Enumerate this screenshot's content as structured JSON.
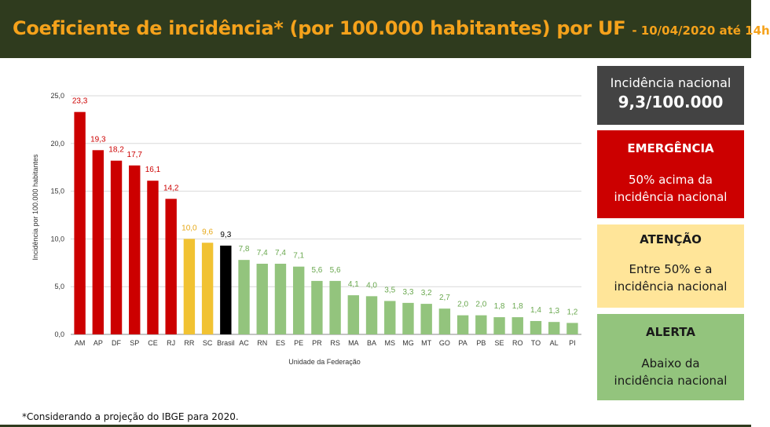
{
  "header": {
    "title": "Coeficiente de incidência* (por 100.000 habitantes) por UF",
    "subtitle": "- 10/04/2020 até 14h"
  },
  "chart_data": {
    "type": "bar",
    "xlabel": "Unidade da Federação",
    "ylabel": "Incidência por 100.000 habitantes",
    "ylim": [
      0,
      25
    ],
    "yticks": [
      "0,0",
      "5,0",
      "10,0",
      "15,0",
      "20,0",
      "25,0"
    ],
    "grid": true,
    "categories": [
      "AM",
      "AP",
      "DF",
      "SP",
      "CE",
      "RJ",
      "RR",
      "SC",
      "Brasil",
      "AC",
      "RN",
      "ES",
      "PE",
      "PR",
      "RS",
      "MA",
      "BA",
      "MS",
      "MG",
      "MT",
      "GO",
      "PA",
      "PB",
      "SE",
      "RO",
      "TO",
      "AL",
      "PI"
    ],
    "values": [
      23.3,
      19.3,
      18.2,
      17.7,
      16.1,
      14.2,
      10.0,
      9.6,
      9.3,
      7.8,
      7.4,
      7.4,
      7.1,
      5.6,
      5.6,
      4.1,
      4.0,
      3.5,
      3.3,
      3.2,
      2.7,
      2.0,
      2.0,
      1.8,
      1.8,
      1.4,
      1.3,
      1.2
    ],
    "value_labels": [
      "23,3",
      "19,3",
      "18,2",
      "17,7",
      "16,1",
      "14,2",
      "10,0",
      "9,6",
      "9,3",
      "7,8",
      "7,4",
      "7,4",
      "7,1",
      "5,6",
      "5,6",
      "4,1",
      "4,0",
      "3,5",
      "3,3",
      "3,2",
      "2,7",
      "2,0",
      "2,0",
      "1,8",
      "1,8",
      "1,4",
      "1,3",
      "1,2"
    ],
    "levels": [
      "emergencia",
      "emergencia",
      "emergencia",
      "emergencia",
      "emergencia",
      "emergencia",
      "atencao",
      "atencao",
      "nacional",
      "alerta",
      "alerta",
      "alerta",
      "alerta",
      "alerta",
      "alerta",
      "alerta",
      "alerta",
      "alerta",
      "alerta",
      "alerta",
      "alerta",
      "alerta",
      "alerta",
      "alerta",
      "alerta",
      "alerta",
      "alerta",
      "alerta"
    ],
    "colors": {
      "emergencia": "#cc0000",
      "atencao": "#f1c232",
      "nacional": "#000000",
      "alerta": "#93c47d",
      "label_emergencia": "#cc0000",
      "label_atencao": "#e6a817",
      "label_nacional": "#000000",
      "label_alerta": "#6aa84f"
    }
  },
  "legend": {
    "national_line1": "Incidência nacional",
    "national_line2": "9,3/100.000",
    "emergency_title": "EMERGÊNCIA",
    "emergency_line1": "50% acima da",
    "emergency_line2": "incidência nacional",
    "attention_title": "ATENÇÃO",
    "attention_line1": "Entre 50% e a",
    "attention_line2": "incidência nacional",
    "alert_title": "ALERTA",
    "alert_line1": "Abaixo da",
    "alert_line2": "incidência nacional"
  },
  "footnote": "*Considerando a projeção do IBGE para 2020."
}
